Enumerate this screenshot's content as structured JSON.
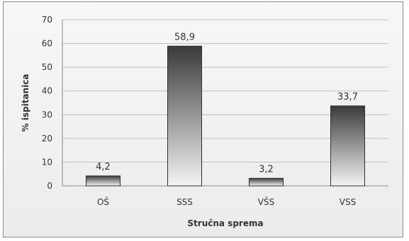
{
  "chart_data": {
    "type": "bar",
    "categories": [
      "OŠ",
      "SSS",
      "VŠS",
      "VSS"
    ],
    "values": [
      4.2,
      58.9,
      3.2,
      33.7
    ],
    "data_labels": [
      "4,2",
      "58,9",
      "3,2",
      "33,7"
    ],
    "title": "",
    "xlabel": "Stručna sprema",
    "ylabel": "% ispitanica",
    "ylim": [
      0,
      70
    ],
    "yticks": [
      0,
      10,
      20,
      30,
      40,
      50,
      60,
      70
    ],
    "grid": true,
    "legend": "none",
    "colors": {
      "bar_top": "#3a3a3a",
      "bar_bottom": "#f4f4f4",
      "grid": "#bdbdbd"
    }
  }
}
